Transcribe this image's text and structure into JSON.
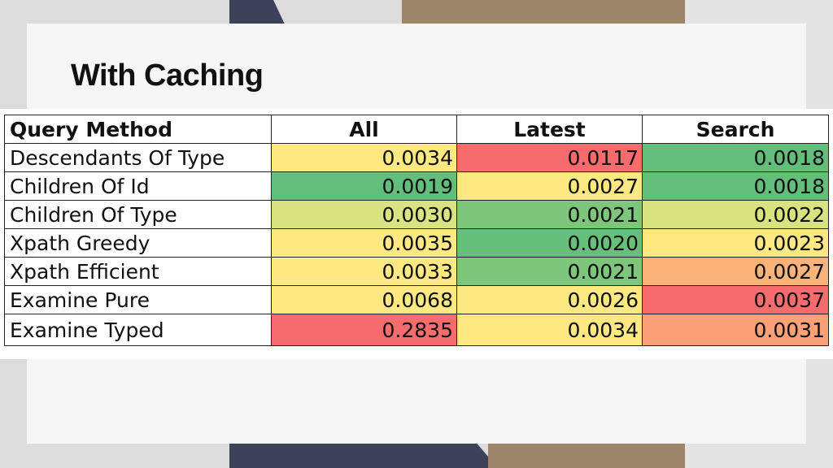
{
  "slide": {
    "title": "With Caching"
  },
  "chart_data": {
    "type": "table",
    "title": "",
    "columns": [
      "Query Method",
      "All",
      "Latest",
      "Search"
    ],
    "rows": [
      {
        "method": "Descendants Of Type",
        "values": [
          "0.0034",
          "0.0117",
          "0.0018"
        ],
        "colors": [
          "#fde882",
          "#f66c6c",
          "#63be7b"
        ]
      },
      {
        "method": "Children Of Id",
        "values": [
          "0.0019",
          "0.0027",
          "0.0018"
        ],
        "colors": [
          "#63be7b",
          "#fde882",
          "#63be7b"
        ]
      },
      {
        "method": "Children Of Type",
        "values": [
          "0.0030",
          "0.0021",
          "0.0022"
        ],
        "colors": [
          "#d9e381",
          "#7ec67c",
          "#d8e27f"
        ]
      },
      {
        "method": "Xpath Greedy",
        "values": [
          "0.0035",
          "0.0020",
          "0.0023"
        ],
        "colors": [
          "#fde882",
          "#66c07b",
          "#fde882"
        ]
      },
      {
        "method": "Xpath Efficient",
        "values": [
          "0.0033",
          "0.0021",
          "0.0027"
        ],
        "colors": [
          "#fde882",
          "#7ec67c",
          "#fcb37a"
        ]
      },
      {
        "method": "Examine Pure",
        "values": [
          "0.0068",
          "0.0026",
          "0.0037"
        ],
        "colors": [
          "#fde882",
          "#fde882",
          "#f66c6c"
        ]
      },
      {
        "method": "Examine Typed",
        "values": [
          "0.2835",
          "0.0034",
          "0.0031"
        ],
        "colors": [
          "#f66c6c",
          "#fde882",
          "#fca077"
        ]
      }
    ]
  }
}
